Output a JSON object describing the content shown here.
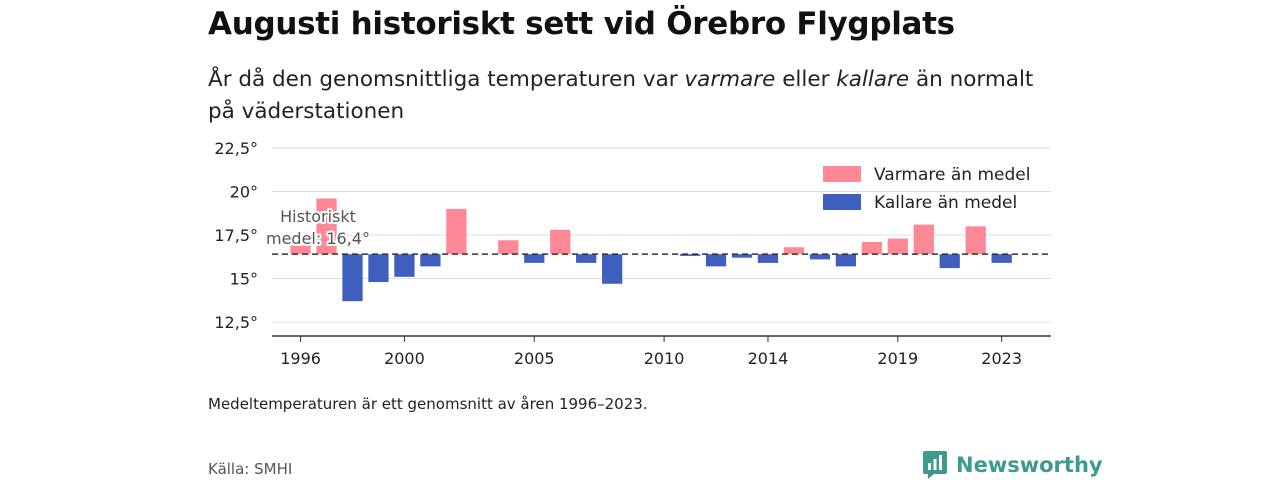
{
  "header": {
    "title": "Augusti historiskt sett vid Örebro Flygplats",
    "subtitle_parts": [
      "År då den genomsnittliga temperaturen var ",
      "varmare",
      " eller ",
      "kallare",
      " än normalt på väderstationen"
    ]
  },
  "chart_data": {
    "type": "bar",
    "title": "",
    "xlabel": "",
    "ylabel": "",
    "baseline": 16.4,
    "ylim": [
      11.7,
      22.5
    ],
    "yticks": [
      12.5,
      15,
      17.5,
      20,
      22.5
    ],
    "ytick_labels": [
      "12,5°",
      "15°",
      "17,5°",
      "20°",
      "22,5°"
    ],
    "xlim": [
      1994.9,
      2024.9
    ],
    "xticks": [
      1996,
      2000,
      2005,
      2010,
      2014,
      2019,
      2023
    ],
    "grid": true,
    "legend_position": "top-right",
    "legend": [
      {
        "label": "Varmare än medel",
        "color": "#ff8896"
      },
      {
        "label": "Kallare än medel",
        "color": "#3f5fbf"
      }
    ],
    "baseline_label": [
      "Historiskt",
      "medel: 16,4°"
    ],
    "years": [
      1996,
      1997,
      1998,
      1999,
      2000,
      2001,
      2002,
      2003,
      2004,
      2005,
      2006,
      2007,
      2008,
      2009,
      2010,
      2011,
      2012,
      2013,
      2014,
      2015,
      2016,
      2017,
      2018,
      2019,
      2020,
      2021,
      2022,
      2023
    ],
    "values": [
      16.9,
      19.6,
      13.7,
      14.8,
      15.1,
      15.7,
      19.0,
      16.4,
      17.2,
      15.9,
      17.8,
      15.9,
      14.7,
      16.4,
      16.4,
      16.3,
      15.7,
      16.2,
      15.9,
      16.8,
      16.1,
      15.7,
      17.1,
      17.3,
      18.1,
      15.6,
      18.0,
      15.9
    ]
  },
  "footer": {
    "note": "Medeltemperaturen är ett genomsnitt av åren 1996–2023.",
    "source": "Källa: SMHI",
    "brand": "Newsworthy"
  },
  "colors": {
    "warm": "#ff8896",
    "cold": "#3f5fbf",
    "grid": "#dddddd",
    "axis": "#333333",
    "brand": "#3d9a8f"
  }
}
